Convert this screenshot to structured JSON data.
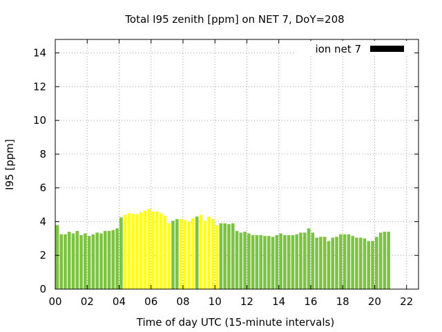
{
  "chart_data": {
    "type": "bar",
    "title": "Total I95 zenith [ppm] on NET 7, DoY=208",
    "xlabel": "Time of day UTC (15-minute intervals)",
    "ylabel": "I95 [ppm]",
    "ylim": [
      0,
      14.8
    ],
    "xlim": [
      0,
      22.75
    ],
    "y_ticks": [
      0,
      2,
      4,
      6,
      8,
      10,
      12,
      14
    ],
    "x_ticks": [
      {
        "value": 0,
        "label": "00"
      },
      {
        "value": 2,
        "label": "02"
      },
      {
        "value": 4,
        "label": "04"
      },
      {
        "value": 6,
        "label": "06"
      },
      {
        "value": 8,
        "label": "08"
      },
      {
        "value": 10,
        "label": "10"
      },
      {
        "value": 12,
        "label": "12"
      },
      {
        "value": 14,
        "label": "14"
      },
      {
        "value": 16,
        "label": "16"
      },
      {
        "value": 18,
        "label": "18"
      },
      {
        "value": 20,
        "label": "20"
      },
      {
        "value": 22,
        "label": "22"
      }
    ],
    "grid": true,
    "legend": {
      "label": "ion net 7",
      "position": "top-right",
      "color": "#000000"
    },
    "colors": {
      "normal": "#7dc242",
      "high": "#ffff1a"
    },
    "interval_hours": 0.25,
    "values": [
      3.8,
      3.25,
      3.25,
      3.4,
      3.3,
      3.45,
      3.2,
      3.3,
      3.15,
      3.25,
      3.35,
      3.3,
      3.45,
      3.45,
      3.5,
      3.6,
      4.25,
      4.4,
      4.5,
      4.45,
      4.45,
      4.55,
      4.65,
      4.75,
      4.6,
      4.6,
      4.5,
      4.35,
      3.9,
      4.05,
      4.15,
      4.15,
      4.1,
      4.0,
      4.2,
      4.3,
      4.4,
      4.05,
      4.3,
      4.15,
      3.8,
      3.9,
      3.9,
      3.85,
      3.9,
      3.45,
      3.35,
      3.4,
      3.3,
      3.2,
      3.2,
      3.2,
      3.15,
      3.15,
      3.1,
      3.2,
      3.3,
      3.2,
      3.2,
      3.2,
      3.25,
      3.35,
      3.35,
      3.6,
      3.35,
      3.05,
      3.1,
      3.1,
      2.85,
      3.05,
      3.1,
      3.25,
      3.25,
      3.25,
      3.15,
      3.05,
      3.05,
      3.0,
      2.85,
      2.85,
      3.1,
      3.35,
      3.4,
      3.4
    ],
    "high_flags": [
      0,
      0,
      0,
      0,
      0,
      0,
      0,
      0,
      0,
      0,
      0,
      0,
      0,
      0,
      0,
      0,
      0,
      1,
      1,
      1,
      1,
      1,
      1,
      1,
      1,
      1,
      1,
      1,
      1,
      0,
      0,
      1,
      1,
      1,
      1,
      0,
      1,
      1,
      1,
      1,
      1,
      0,
      0,
      0,
      0,
      0,
      0,
      0,
      0,
      0,
      0,
      0,
      0,
      0,
      0,
      0,
      0,
      0,
      0,
      0,
      0,
      0,
      0,
      0,
      0,
      0,
      0,
      0,
      0,
      0,
      0,
      0,
      0,
      0,
      0,
      0,
      0,
      0,
      0,
      0,
      0,
      0,
      0,
      0
    ]
  }
}
